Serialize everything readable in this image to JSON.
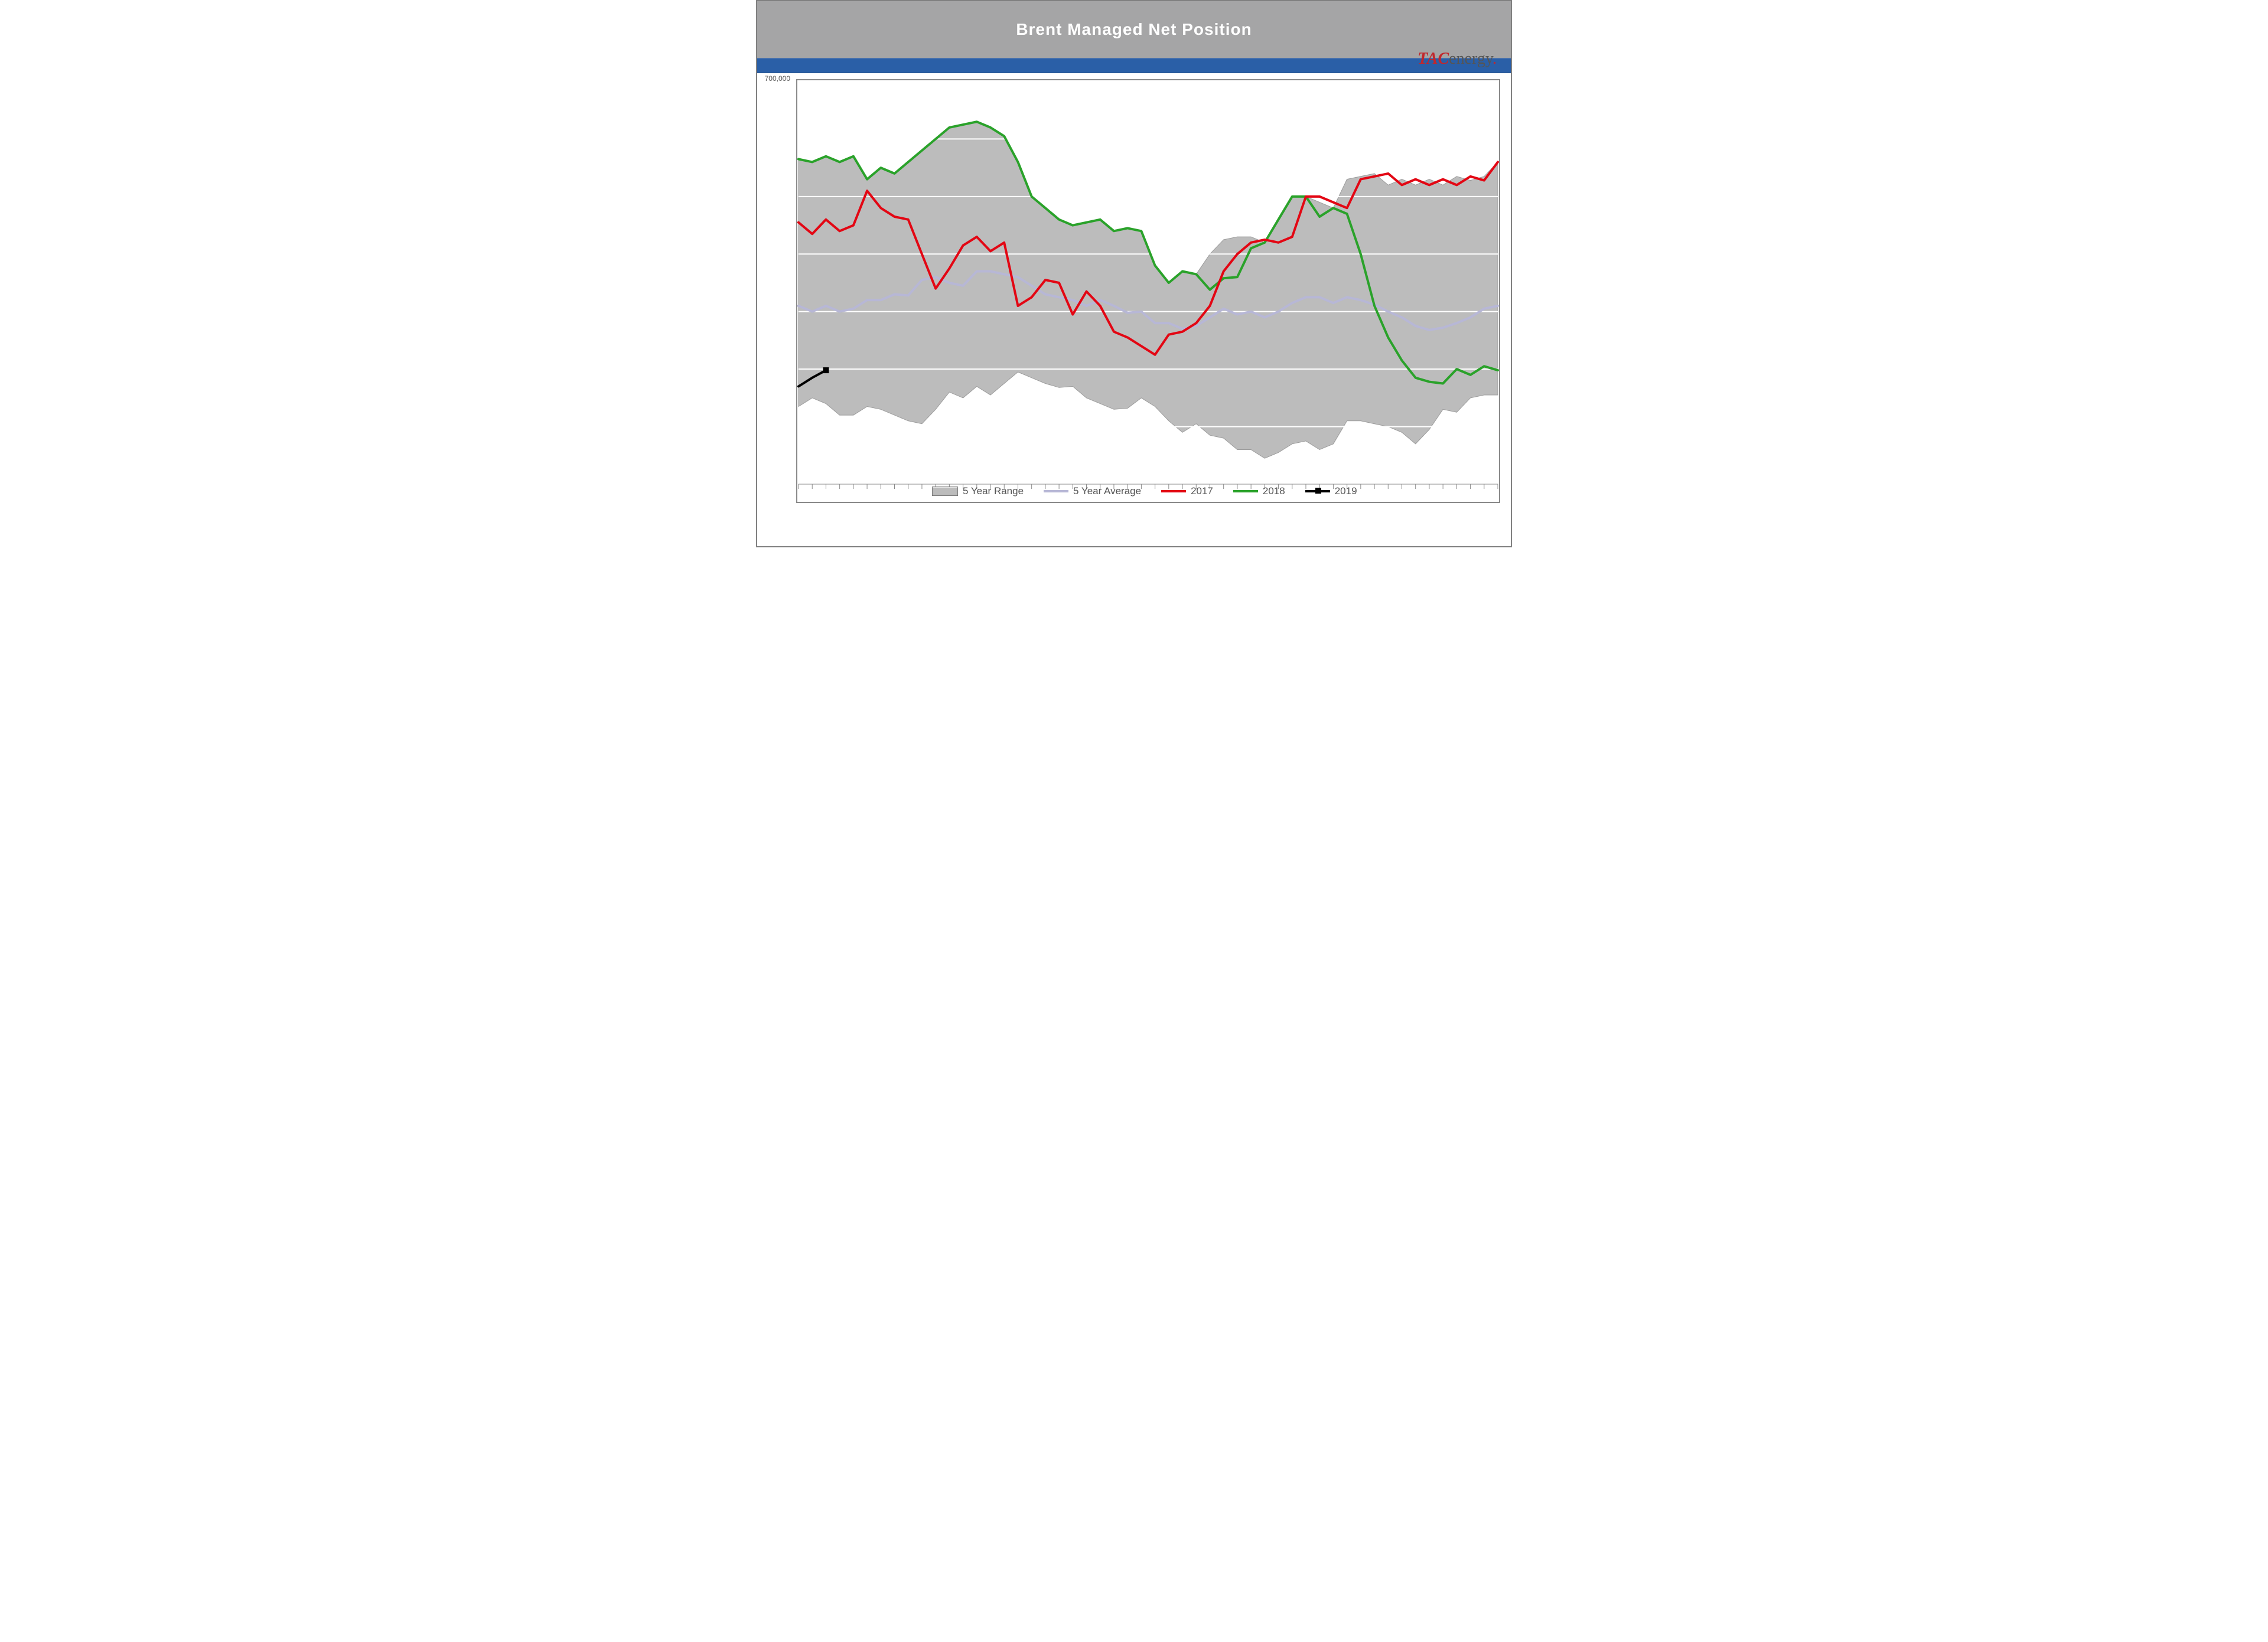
{
  "header": {
    "title": "Brent Managed Net Position",
    "title_color": "#ffffff",
    "title_fontsize": 28,
    "bar_bg": "#a5a5a6",
    "accent_bg": "#2a5fa7"
  },
  "logo": {
    "tac": "TAC",
    "energy": "energy",
    "tac_color": "#c1272d",
    "energy_color": "#555555"
  },
  "legend": {
    "range": "5 Year Range",
    "average": "5 Year Average",
    "y2017": "2017",
    "y2018": "2018",
    "y2019": "2019"
  },
  "chart": {
    "type": "line+range",
    "n_points": 52,
    "ylim": [
      0,
      700000
    ],
    "ytick_step": 100000,
    "ytick_first_label": "700,000",
    "xtick_count": 52,
    "background_color": "#ffffff",
    "gridline_color": "#ffffff",
    "plot_border_color": "#8a8a8a",
    "line_width": 4,
    "colors": {
      "range_fill": "#bcbcbc",
      "range_edge": "#9b9b9b",
      "average": "#b7b7d6",
      "y2017": "#e30613",
      "y2018": "#2aa22a",
      "y2019": "#000000"
    },
    "range_top": [
      565000,
      560000,
      570000,
      560000,
      570000,
      530000,
      550000,
      540000,
      560000,
      580000,
      600000,
      620000,
      625000,
      630000,
      620000,
      605000,
      560000,
      500000,
      480000,
      460000,
      450000,
      455000,
      460000,
      440000,
      445000,
      440000,
      380000,
      350000,
      370000,
      365000,
      400000,
      425000,
      430000,
      430000,
      420000,
      460000,
      500000,
      500000,
      490000,
      480000,
      530000,
      535000,
      540000,
      520000,
      530000,
      520000,
      530000,
      520000,
      535000,
      528000,
      535000,
      560000
    ],
    "range_bot": [
      135000,
      150000,
      140000,
      120000,
      120000,
      135000,
      130000,
      120000,
      110000,
      105000,
      130000,
      160000,
      150000,
      170000,
      155000,
      175000,
      195000,
      185000,
      175000,
      168000,
      170000,
      150000,
      140000,
      130000,
      132000,
      150000,
      135000,
      110000,
      90000,
      105000,
      85000,
      80000,
      60000,
      60000,
      45000,
      55000,
      70000,
      75000,
      60000,
      70000,
      110000,
      110000,
      105000,
      100000,
      90000,
      70000,
      95000,
      130000,
      125000,
      150000,
      155000,
      155000
    ],
    "average": [
      310000,
      300000,
      310000,
      300000,
      305000,
      320000,
      320000,
      330000,
      328000,
      355000,
      360000,
      350000,
      345000,
      370000,
      370000,
      365000,
      360000,
      345000,
      330000,
      325000,
      320000,
      310000,
      320000,
      310000,
      298000,
      300000,
      280000,
      280000,
      270000,
      275000,
      290000,
      305000,
      295000,
      300000,
      290000,
      300000,
      315000,
      325000,
      325000,
      315000,
      325000,
      320000,
      312000,
      300000,
      290000,
      275000,
      268000,
      272000,
      280000,
      290000,
      305000,
      310000
    ],
    "y2017": [
      455000,
      435000,
      460000,
      440000,
      450000,
      510000,
      480000,
      465000,
      460000,
      400000,
      340000,
      375000,
      415000,
      430000,
      405000,
      420000,
      310000,
      325000,
      355000,
      350000,
      295000,
      335000,
      310000,
      265000,
      255000,
      240000,
      225000,
      260000,
      265000,
      280000,
      310000,
      370000,
      400000,
      420000,
      425000,
      420000,
      430000,
      500000,
      500000,
      490000,
      480000,
      530000,
      535000,
      540000,
      520000,
      530000,
      520000,
      530000,
      520000,
      535000,
      528000,
      560000
    ],
    "y2018": [
      565000,
      560000,
      570000,
      560000,
      570000,
      530000,
      550000,
      540000,
      560000,
      580000,
      600000,
      620000,
      625000,
      630000,
      620000,
      605000,
      560000,
      500000,
      480000,
      460000,
      450000,
      455000,
      460000,
      440000,
      445000,
      440000,
      380000,
      350000,
      370000,
      365000,
      338000,
      358000,
      360000,
      410000,
      420000,
      460000,
      500000,
      500000,
      465000,
      480000,
      470000,
      400000,
      310000,
      255000,
      215000,
      185000,
      178000,
      175000,
      200000,
      190000,
      205000,
      198000
    ],
    "y2019": [
      170000,
      185000,
      198000
    ]
  }
}
